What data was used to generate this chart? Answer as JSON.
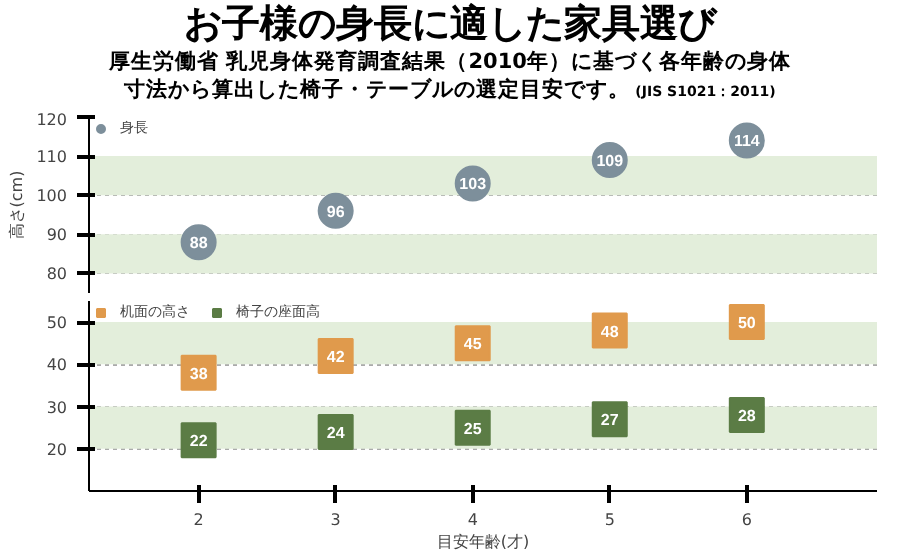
{
  "chart_data": [
    {
      "type": "scatter",
      "title": "お子様の身長に適した家具選び",
      "subtitle": "厚生労働省 乳児身体発育調査結果（2010年）に基づく各年齢の身体寸法から算出した椅子・テーブルの選定目安です。",
      "annotations": [
        "(JIS S1021：2011)"
      ],
      "ylabel": "高さ(cm)",
      "x": [
        2,
        3,
        4,
        5,
        6
      ],
      "xlim": [
        1.2,
        6.95
      ],
      "ylim": [
        75,
        120
      ],
      "yticks": [
        80,
        90,
        100,
        110,
        120
      ],
      "tick_labels": "y",
      "grid": "y",
      "legend": "top left",
      "data_labels": true,
      "bands": [
        {
          "axis": "y",
          "from": 80,
          "to": 90,
          "color": "#e3eedb"
        },
        {
          "axis": "y",
          "from": 100,
          "to": 110,
          "color": "#e3eedb"
        }
      ],
      "series": [
        {
          "name": "身長",
          "color": "#7d8f9b",
          "marker": "circle",
          "values": [
            88,
            96,
            103,
            109,
            114
          ]
        }
      ]
    },
    {
      "type": "scatter",
      "xlabel": "目安年齢(才)",
      "x": [
        2,
        3,
        4,
        5,
        6
      ],
      "xlim": [
        1.2,
        6.95
      ],
      "xticks": [
        2,
        3,
        4,
        5,
        6
      ],
      "ylim": [
        10,
        55
      ],
      "yticks": [
        20,
        30,
        40,
        50
      ],
      "grid": "y",
      "legend": "top left",
      "data_labels": true,
      "bands": [
        {
          "axis": "y",
          "from": 20,
          "to": 30,
          "color": "#e3eedb"
        },
        {
          "axis": "y",
          "from": 40,
          "to": 50,
          "color": "#e3eedb"
        }
      ],
      "series": [
        {
          "name": "机面の高さ",
          "color": "#e09a4c",
          "marker": "square",
          "values": [
            38,
            42,
            45,
            48,
            50
          ]
        },
        {
          "name": "椅子の座面高",
          "color": "#5b7c45",
          "marker": "square",
          "values": [
            22,
            24,
            25,
            27,
            28
          ]
        }
      ]
    }
  ]
}
